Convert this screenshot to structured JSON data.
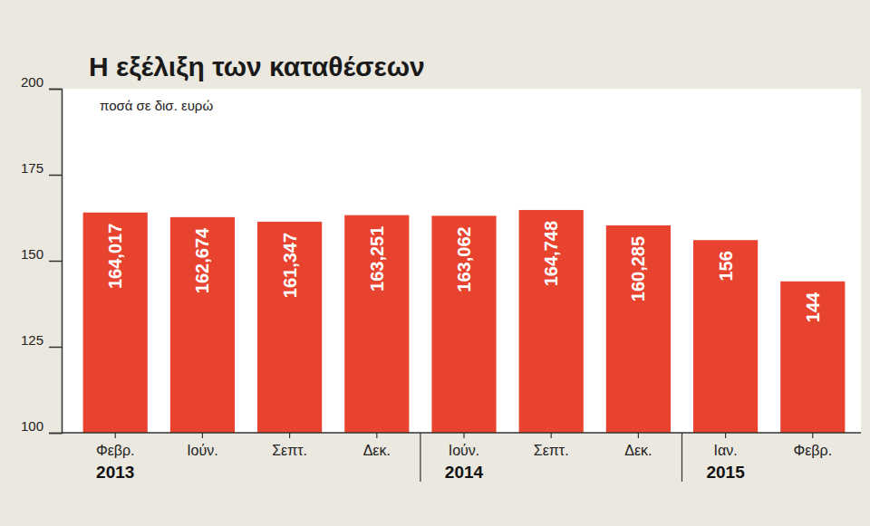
{
  "chart_data": {
    "type": "bar",
    "title": "Η εξέλιξη των καταθέσεων",
    "subtitle": "ποσά σε δισ. ευρώ",
    "categories": [
      "Φεβρ.",
      "Ιούν.",
      "Σεπτ.",
      "Δεκ.",
      "Ιούν.",
      "Σεπτ.",
      "Δεκ.",
      "Ιαν.",
      "Φεβρ."
    ],
    "values": [
      164.017,
      162.674,
      161.347,
      163.251,
      163.062,
      164.748,
      160.285,
      156,
      144
    ],
    "value_labels": [
      "164,017",
      "162,674",
      "161,347",
      "163,251",
      "163,062",
      "164,748",
      "160,285",
      "156",
      "144"
    ],
    "color": "#e8432f",
    "ylim": [
      100,
      200
    ],
    "yticks": [
      100,
      125,
      150,
      175,
      200
    ],
    "data_labels": true,
    "groups": [
      {
        "label": "2013",
        "start": 0
      },
      {
        "label": "2014",
        "start": 4
      },
      {
        "label": "2015",
        "start": 7
      }
    ]
  }
}
